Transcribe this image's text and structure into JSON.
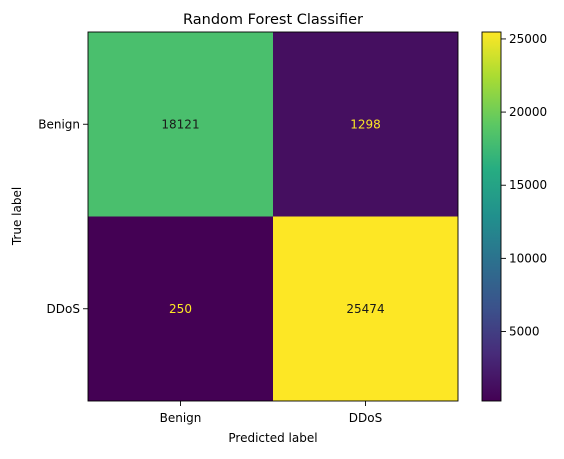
{
  "chart_data": {
    "type": "heatmap",
    "title": "Random Forest Classifier",
    "xlabel": "Predicted label",
    "ylabel": "True label",
    "x_categories": [
      "Benign",
      "DDoS"
    ],
    "y_categories": [
      "Benign",
      "DDoS"
    ],
    "values": [
      [
        18121,
        1298
      ],
      [
        250,
        25474
      ]
    ],
    "colormap": "viridis",
    "colorbar": {
      "ticks": [
        5000,
        10000,
        15000,
        20000,
        25000
      ],
      "range": [
        250,
        25474
      ]
    },
    "text_colors": {
      "on_dark": "#fde725",
      "on_light": "#1a1a1a"
    }
  }
}
